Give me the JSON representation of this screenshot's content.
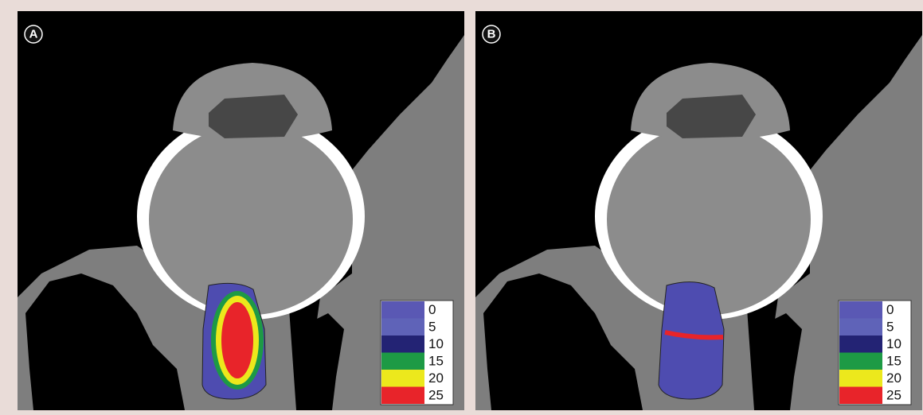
{
  "panels": [
    {
      "label": "A",
      "legend": {
        "items": [
          {
            "label": 0,
            "color": "#5a58b4"
          },
          {
            "label": 5,
            "color": "#5f63b8"
          },
          {
            "label": 10,
            "color": "#232374"
          },
          {
            "label": 15,
            "color": "#1d9a45"
          },
          {
            "label": 20,
            "color": "#ece81c"
          },
          {
            "label": 25,
            "color": "#e8242a"
          }
        ]
      }
    },
    {
      "label": "B",
      "legend": {
        "items": [
          {
            "label": 0,
            "color": "#5a58b4"
          },
          {
            "label": 5,
            "color": "#5f63b8"
          },
          {
            "label": 10,
            "color": "#232374"
          },
          {
            "label": 15,
            "color": "#1d9a45"
          },
          {
            "label": 20,
            "color": "#ece81c"
          },
          {
            "label": 25,
            "color": "#e8242a"
          }
        ]
      }
    }
  ]
}
